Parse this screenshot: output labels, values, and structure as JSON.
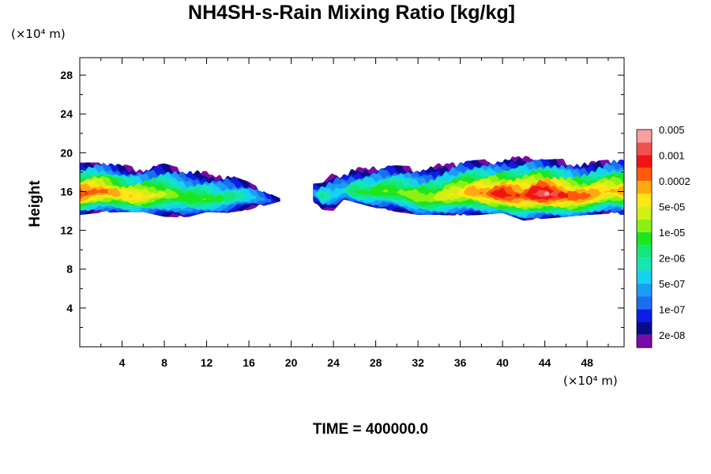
{
  "chart_data": {
    "type": "heatmap",
    "title": "NH4SH-s-Rain Mixing Ratio [kg/kg]",
    "ylabel": "Height",
    "xlabel": "",
    "x_unit": "(×10⁴ m)",
    "y_unit": "(×10⁴ m)",
    "xlim": [
      0,
      51.5
    ],
    "ylim": [
      0,
      29.8
    ],
    "x_ticks": [
      4,
      8,
      12,
      16,
      20,
      24,
      28,
      32,
      36,
      40,
      44,
      48
    ],
    "y_ticks": [
      4,
      8,
      12,
      16,
      20,
      24,
      28
    ],
    "grid": false,
    "footer": "TIME = 400000.0",
    "colorbar": {
      "placement": "right",
      "colors": [
        "#7a0aa8",
        "#0a0a8a",
        "#0a1ee6",
        "#1a6ef0",
        "#1a9ef5",
        "#14d2f0",
        "#14e6b4",
        "#14e678",
        "#1ee61e",
        "#8cf014",
        "#d2f014",
        "#ffe614",
        "#ffaa14",
        "#ff5a0a",
        "#f01414",
        "#f05050",
        "#f8a0a0"
      ],
      "labels": [
        "2e-08",
        "1e-07",
        "5e-07",
        "2e-06",
        "1e-05",
        "5e-05",
        "0.0002",
        "0.001",
        "0.005"
      ]
    },
    "cloud_profile": {
      "x": [
        0,
        2,
        4,
        6,
        8,
        10,
        12,
        14,
        16,
        18,
        19,
        22,
        23,
        24,
        25,
        26,
        28,
        30,
        32,
        34,
        36,
        38,
        40,
        42,
        44,
        46,
        48,
        50,
        51.5
      ],
      "bottom": [
        13.6,
        13.8,
        13.9,
        13.9,
        13.4,
        13.3,
        13.9,
        13.8,
        14.1,
        14.7,
        15.0,
        15.0,
        14.1,
        14.0,
        15.2,
        14.9,
        14.3,
        13.9,
        13.6,
        13.6,
        13.5,
        13.6,
        13.8,
        13.0,
        13.2,
        13.4,
        13.6,
        13.7,
        13.6
      ],
      "top": [
        19.0,
        19.0,
        18.8,
        18.6,
        18.9,
        18.3,
        18.1,
        17.8,
        17.0,
        15.8,
        15.3,
        16.8,
        16.9,
        18.1,
        17.9,
        18.5,
        18.6,
        18.7,
        18.6,
        18.9,
        19.1,
        19.3,
        19.6,
        19.7,
        19.3,
        19.4,
        19.1,
        19.3,
        19.3
      ],
      "core_max": [
        0.85,
        0.8,
        0.7,
        0.72,
        0.6,
        0.5,
        0.55,
        0.45,
        0.35,
        0.2,
        0.1,
        0.28,
        0.45,
        0.32,
        0.38,
        0.5,
        0.52,
        0.55,
        0.58,
        0.62,
        0.7,
        0.78,
        0.88,
        0.82,
        0.97,
        0.83,
        0.78,
        0.72,
        0.75
      ]
    }
  }
}
